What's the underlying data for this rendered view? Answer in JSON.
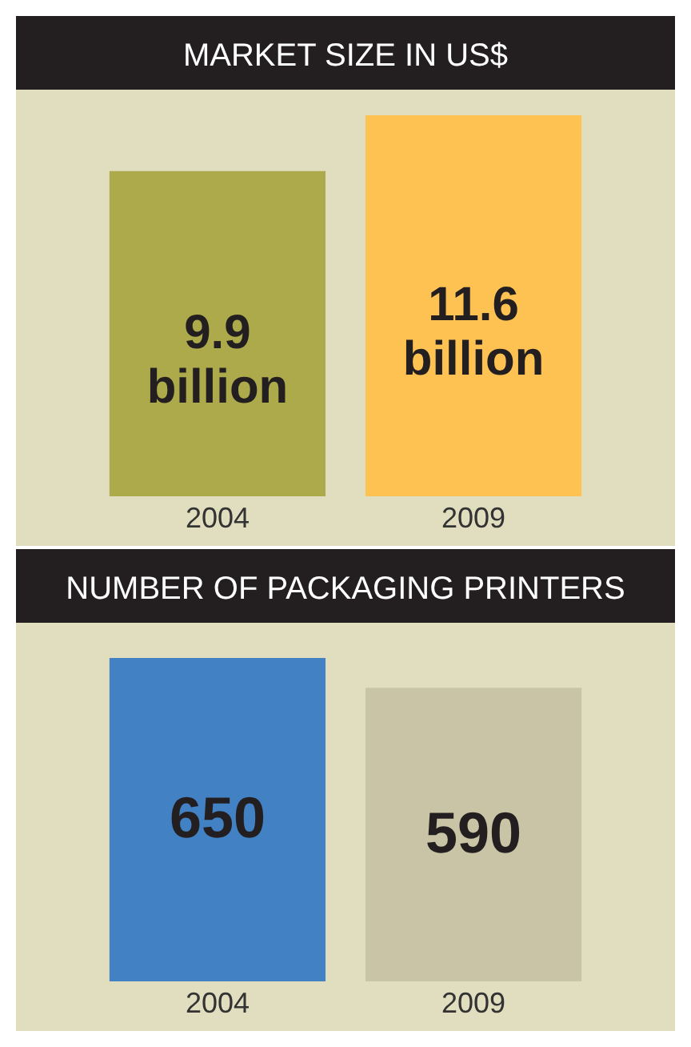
{
  "chart_data": [
    {
      "type": "bar",
      "title": "MARKET SIZE IN US$",
      "categories": [
        "2004",
        "2009"
      ],
      "values": [
        9.9,
        11.6
      ],
      "colors": [
        "#adaa4b",
        "#fec253"
      ],
      "value_labels": [
        "9.9 billion",
        "11.6 billion"
      ]
    },
    {
      "type": "bar",
      "title": "NUMBER OF PACKAGING PRINTERS",
      "categories": [
        "2004",
        "2009"
      ],
      "values": [
        650,
        590
      ],
      "colors": [
        "#4181c4",
        "#c9c4a5"
      ],
      "data_labels": true
    }
  ]
}
